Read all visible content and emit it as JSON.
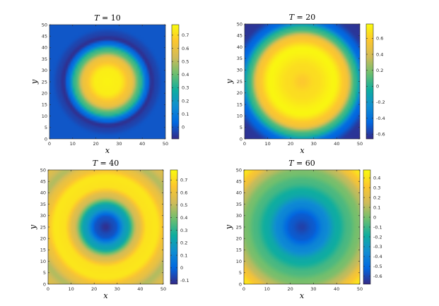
{
  "figure": {
    "colormap": "parula",
    "colormap_stops": [
      "#352a87",
      "#0268e1",
      "#108ed2",
      "#0fae9f",
      "#6ebf6f",
      "#d1bb59",
      "#fdc72f",
      "#f9fb0e"
    ]
  },
  "chart_data": [
    {
      "type": "heatmap",
      "title_prefix": "T",
      "title_equals": " = ",
      "title_value": "10",
      "xlabel": "x",
      "ylabel": "y",
      "xlim": [
        0,
        50
      ],
      "ylim": [
        0,
        50
      ],
      "xticks": [
        0,
        10,
        20,
        30,
        40,
        50
      ],
      "yticks": [
        0,
        5,
        10,
        15,
        20,
        25,
        30,
        35,
        40,
        45,
        50
      ],
      "center": [
        25,
        25
      ],
      "field": {
        "radial_profile": [
          {
            "r": 0,
            "v": 0.76
          },
          {
            "r": 5,
            "v": 0.75
          },
          {
            "r": 10,
            "v": 0.62
          },
          {
            "r": 14,
            "v": 0.35
          },
          {
            "r": 17,
            "v": 0.05
          },
          {
            "r": 19,
            "v": -0.08
          },
          {
            "r": 21,
            "v": -0.04
          },
          {
            "r": 24,
            "v": 0.0
          },
          {
            "r": 40,
            "v": 0.0
          }
        ]
      },
      "clim": [
        -0.09,
        0.78
      ],
      "colorbar": {
        "ticks": [
          0,
          0.1,
          0.2,
          0.3,
          0.4,
          0.5,
          0.6,
          0.7
        ],
        "tick_labels": [
          "0",
          "0.1",
          "0.2",
          "0.3",
          "0.4",
          "0.5",
          "0.6",
          "0.7"
        ]
      }
    },
    {
      "type": "heatmap",
      "title_prefix": "T",
      "title_equals": " = ",
      "title_value": "20",
      "xlabel": "x",
      "ylabel": "y",
      "xlim": [
        0,
        50
      ],
      "ylim": [
        0,
        50
      ],
      "xticks": [
        0,
        10,
        20,
        30,
        40,
        50
      ],
      "yticks": [
        0,
        5,
        10,
        15,
        20,
        25,
        30,
        35,
        40,
        45,
        50
      ],
      "center": [
        25,
        25
      ],
      "field": {
        "radial_profile": [
          {
            "r": 0,
            "v": 0.58
          },
          {
            "r": 6,
            "v": 0.66
          },
          {
            "r": 14,
            "v": 0.76
          },
          {
            "r": 19,
            "v": 0.55
          },
          {
            "r": 23,
            "v": 0.05
          },
          {
            "r": 27,
            "v": -0.45
          },
          {
            "r": 31,
            "v": -0.62
          },
          {
            "r": 36,
            "v": -0.64
          }
        ]
      },
      "clim": [
        -0.66,
        0.78
      ],
      "colorbar": {
        "ticks": [
          -0.6,
          -0.4,
          -0.2,
          0,
          0.2,
          0.4,
          0.6
        ],
        "tick_labels": [
          "-0.6",
          "-0.4",
          "-0.2",
          "0",
          "0.2",
          "0.4",
          "0.6"
        ]
      }
    },
    {
      "type": "heatmap",
      "title_prefix": "T",
      "title_equals": " = ",
      "title_value": "40",
      "xlabel": "x",
      "ylabel": "y",
      "xlim": [
        0,
        50
      ],
      "ylim": [
        0,
        50
      ],
      "xticks": [
        0,
        10,
        20,
        30,
        40,
        50
      ],
      "yticks": [
        0,
        5,
        10,
        15,
        20,
        25,
        30,
        35,
        40,
        45,
        50
      ],
      "center": [
        25,
        25
      ],
      "field": {
        "radial_profile": [
          {
            "r": 0,
            "v": -0.12
          },
          {
            "r": 4,
            "v": -0.05
          },
          {
            "r": 9,
            "v": 0.2
          },
          {
            "r": 14,
            "v": 0.55
          },
          {
            "r": 18,
            "v": 0.72
          },
          {
            "r": 22,
            "v": 0.73
          },
          {
            "r": 26,
            "v": 0.6
          },
          {
            "r": 30,
            "v": 0.48
          },
          {
            "r": 34,
            "v": 0.55
          },
          {
            "r": 36,
            "v": 0.6
          }
        ]
      },
      "clim": [
        -0.13,
        0.78
      ],
      "colorbar": {
        "ticks": [
          -0.1,
          0,
          0.1,
          0.2,
          0.3,
          0.4,
          0.5,
          0.6,
          0.7
        ],
        "tick_labels": [
          "-0.1",
          "0",
          "0.1",
          "0.2",
          "0.3",
          "0.4",
          "0.5",
          "0.6",
          "0.7"
        ]
      }
    },
    {
      "type": "heatmap",
      "title_prefix": "T",
      "title_equals": " = ",
      "title_value": "60",
      "xlabel": "x",
      "ylabel": "y",
      "xlim": [
        0,
        50
      ],
      "ylim": [
        0,
        50
      ],
      "xticks": [
        0,
        10,
        20,
        30,
        40,
        50
      ],
      "yticks": [
        0,
        5,
        10,
        15,
        20,
        25,
        30,
        35,
        40,
        45,
        50
      ],
      "center": [
        25,
        25
      ],
      "field": {
        "radial_profile": [
          {
            "r": 0,
            "v": -0.62
          },
          {
            "r": 5,
            "v": -0.55
          },
          {
            "r": 10,
            "v": -0.38
          },
          {
            "r": 15,
            "v": -0.2
          },
          {
            "r": 20,
            "v": -0.08
          },
          {
            "r": 24,
            "v": 0.0
          },
          {
            "r": 28,
            "v": 0.12
          },
          {
            "r": 31,
            "v": 0.28
          },
          {
            "r": 34,
            "v": 0.4
          },
          {
            "r": 36,
            "v": 0.45
          }
        ]
      },
      "clim": [
        -0.68,
        0.48
      ],
      "colorbar": {
        "ticks": [
          -0.6,
          -0.5,
          -0.4,
          -0.3,
          -0.2,
          -0.1,
          0,
          0.1,
          0.2,
          0.3,
          0.4
        ],
        "tick_labels": [
          "-0.6",
          "-0.5",
          "-0.4",
          "-0.3",
          "-0.2",
          "-0.1",
          "0",
          "0.1",
          "0.2",
          "0.3",
          "0.4"
        ]
      }
    }
  ]
}
